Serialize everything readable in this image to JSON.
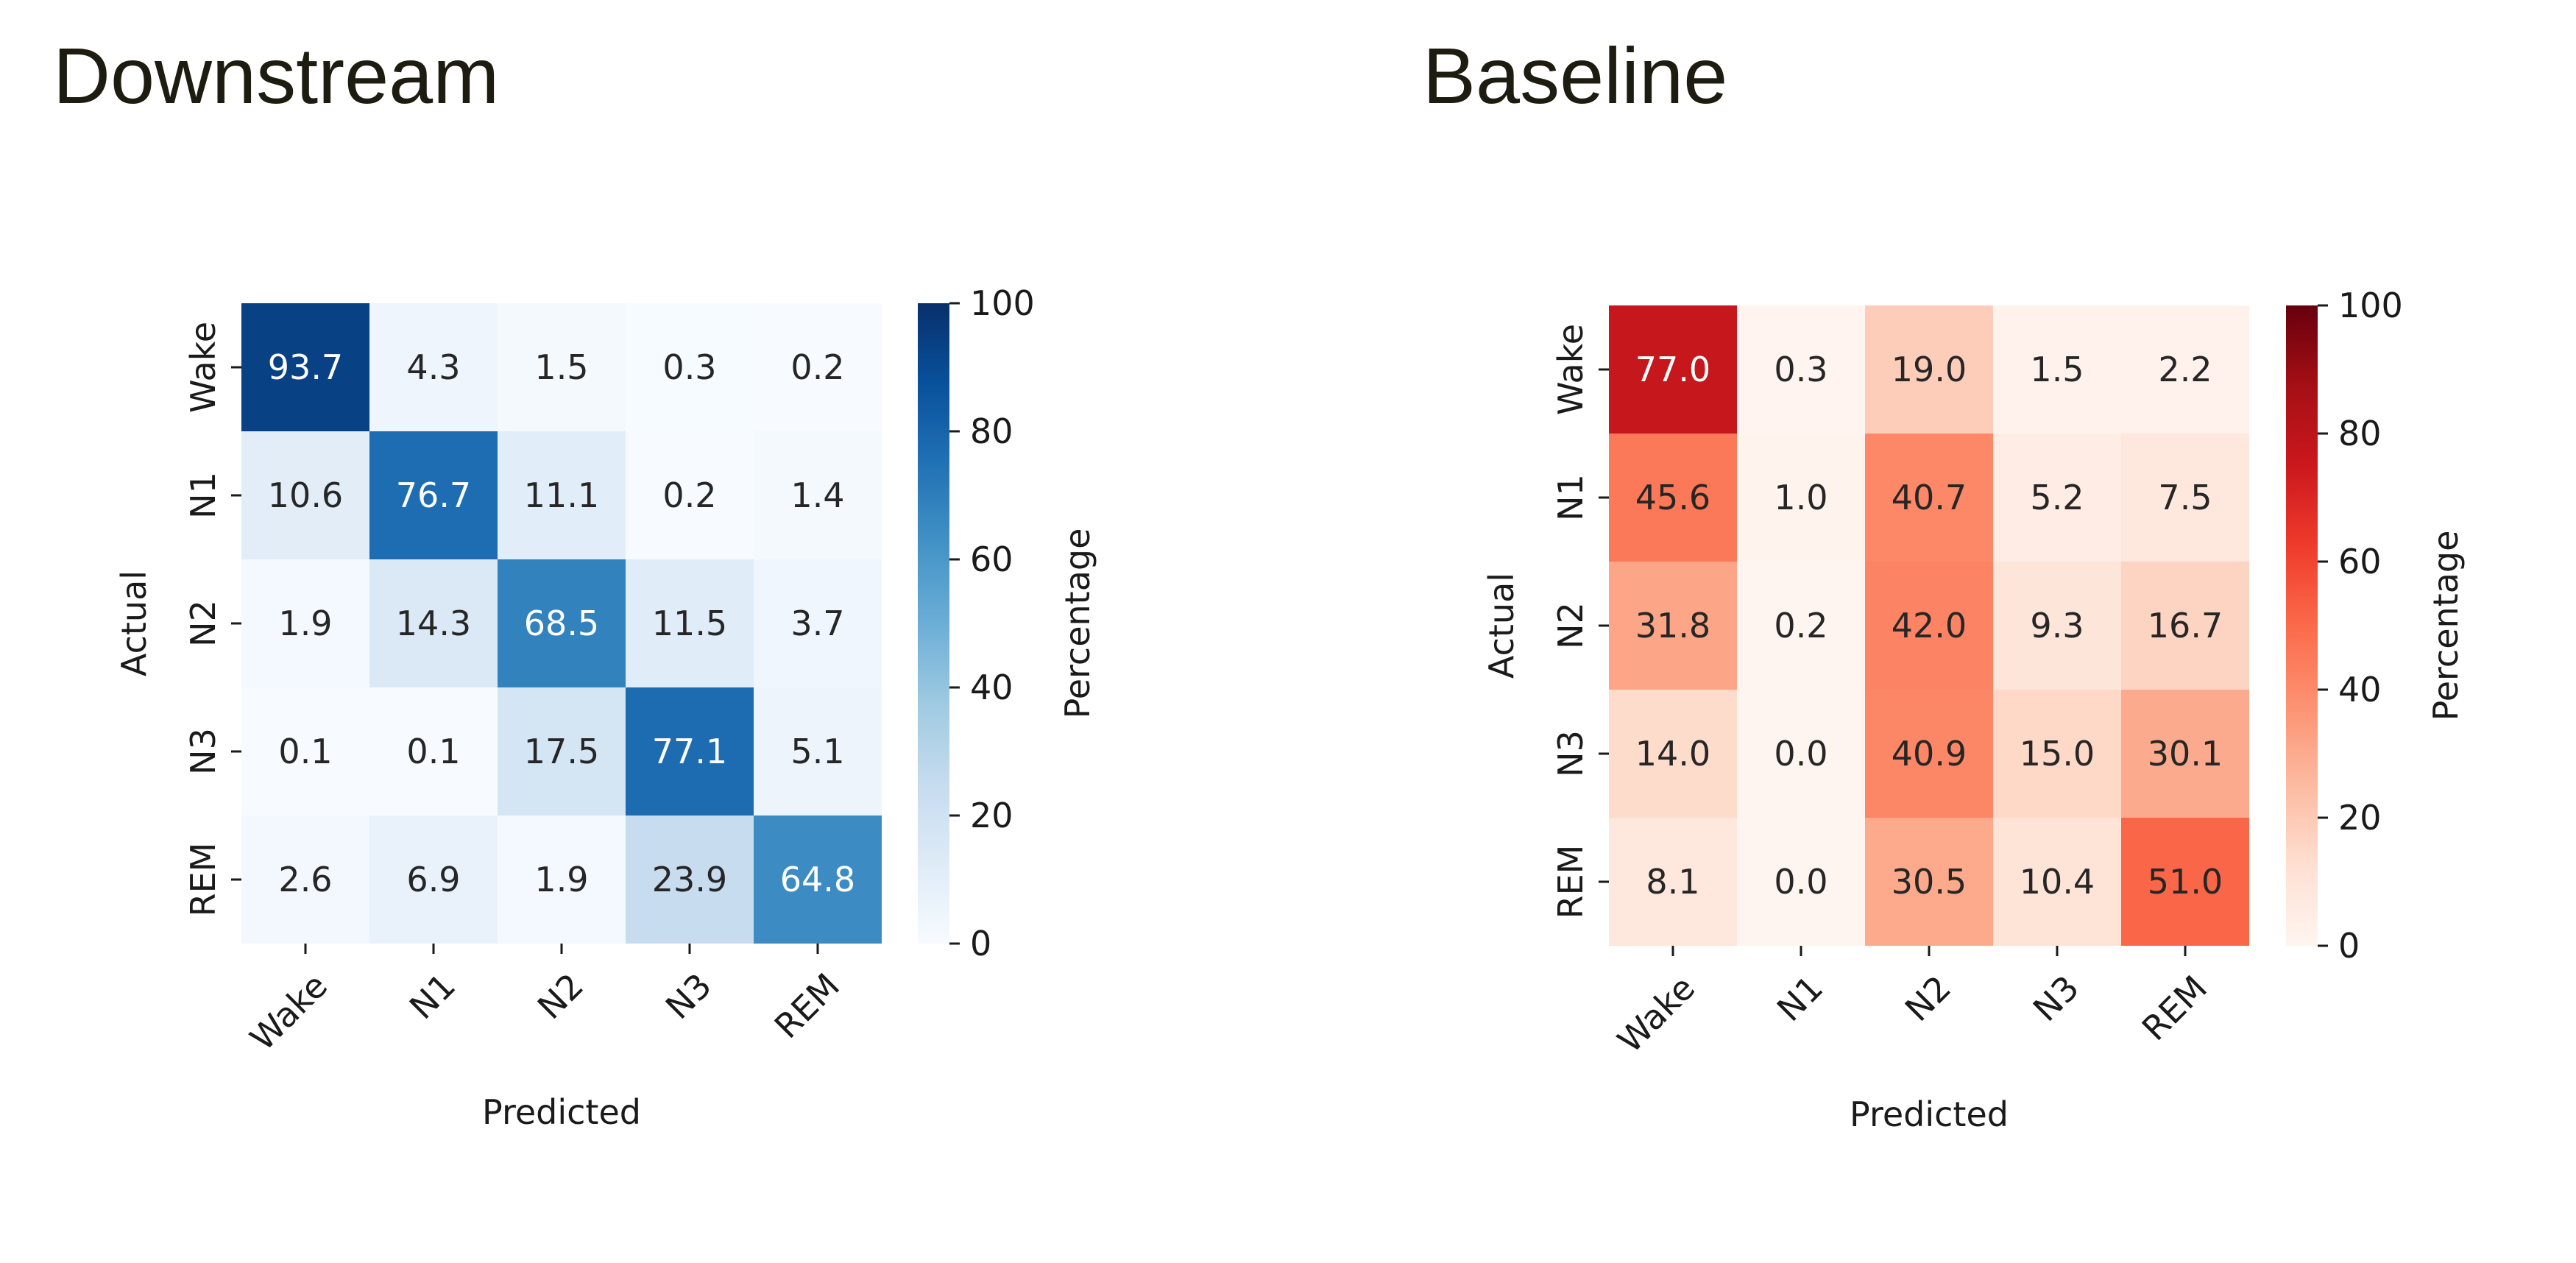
{
  "chart_data": [
    {
      "type": "heatmap",
      "title": "Downstream",
      "xlabel": "Predicted",
      "ylabel": "Actual",
      "x_categories": [
        "Wake",
        "N1",
        "N2",
        "N3",
        "REM"
      ],
      "y_categories": [
        "Wake",
        "N1",
        "N2",
        "N3",
        "REM"
      ],
      "values": [
        [
          93.7,
          4.3,
          1.5,
          0.3,
          0.2
        ],
        [
          10.6,
          76.7,
          11.1,
          0.2,
          1.4
        ],
        [
          1.9,
          14.3,
          68.5,
          11.5,
          3.7
        ],
        [
          0.1,
          0.1,
          17.5,
          77.1,
          5.1
        ],
        [
          2.6,
          6.9,
          1.9,
          23.9,
          64.8
        ]
      ],
      "colormap": "Blues",
      "colorbar": {
        "label": "Percentage",
        "ticks": [
          "0",
          "20",
          "40",
          "60",
          "80",
          "100"
        ],
        "range": [
          0,
          100
        ]
      }
    },
    {
      "type": "heatmap",
      "title": "Baseline",
      "xlabel": "Predicted",
      "ylabel": "Actual",
      "x_categories": [
        "Wake",
        "N1",
        "N2",
        "N3",
        "REM"
      ],
      "y_categories": [
        "Wake",
        "N1",
        "N2",
        "N3",
        "REM"
      ],
      "values": [
        [
          77.0,
          0.3,
          19.0,
          1.5,
          2.2
        ],
        [
          45.6,
          1.0,
          40.7,
          5.2,
          7.5
        ],
        [
          31.8,
          0.2,
          42.0,
          9.3,
          16.7
        ],
        [
          14.0,
          0.0,
          40.9,
          15.0,
          30.1
        ],
        [
          8.1,
          0.0,
          30.5,
          10.4,
          51.0
        ]
      ],
      "colormap": "Reds",
      "colorbar": {
        "label": "Percentage",
        "ticks": [
          "0",
          "20",
          "40",
          "60",
          "80",
          "100"
        ],
        "range": [
          0,
          100
        ]
      }
    }
  ]
}
